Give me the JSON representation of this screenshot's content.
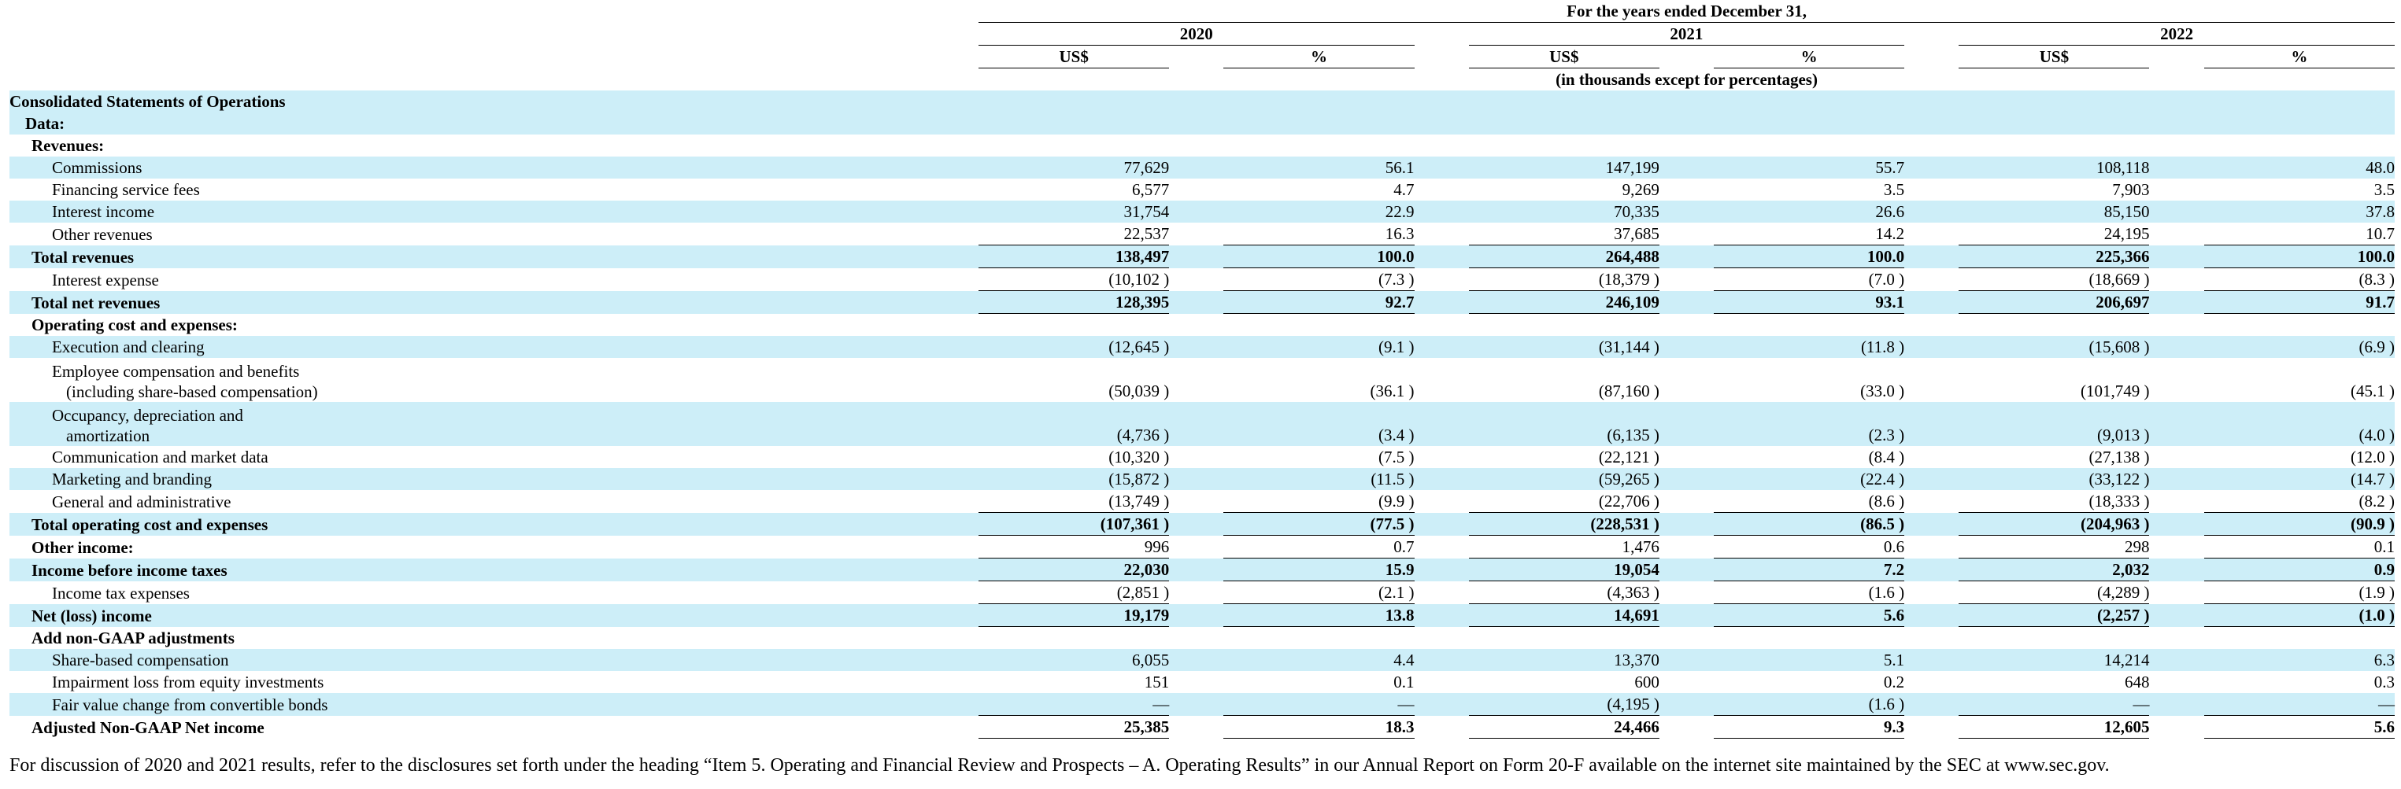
{
  "header": {
    "period": "For the years ended December 31,",
    "years": [
      "2020",
      "2021",
      "2022"
    ],
    "col_labels": [
      "US$",
      "%"
    ],
    "units_note": "(in thousands except for percentages)"
  },
  "section_title": "Consolidated Statements of Operations",
  "section_subtitle": "Data:",
  "rows": [
    {
      "label": "Revenues:",
      "indent": 1,
      "bold": true,
      "shade": false,
      "vals": [
        "",
        "",
        "",
        "",
        "",
        ""
      ]
    },
    {
      "label": "Commissions",
      "indent": 2,
      "shade": true,
      "vals": [
        "77,629",
        "56.1",
        "147,199",
        "55.7",
        "108,118",
        "48.0"
      ]
    },
    {
      "label": "Financing service fees",
      "indent": 2,
      "shade": false,
      "vals": [
        "6,577",
        "4.7",
        "9,269",
        "3.5",
        "7,903",
        "3.5"
      ]
    },
    {
      "label": "Interest income",
      "indent": 2,
      "shade": true,
      "vals": [
        "31,754",
        "22.9",
        "70,335",
        "26.6",
        "85,150",
        "37.8"
      ]
    },
    {
      "label": "Other revenues",
      "indent": 2,
      "shade": false,
      "vals": [
        "22,537",
        "16.3",
        "37,685",
        "14.2",
        "24,195",
        "10.7"
      ]
    },
    {
      "label": "Total revenues",
      "indent": 1,
      "bold": true,
      "shade": true,
      "line": "both",
      "vals": [
        "138,497",
        "100.0",
        "264,488",
        "100.0",
        "225,366",
        "100.0"
      ]
    },
    {
      "label": "Interest expense",
      "indent": 2,
      "shade": false,
      "vals": [
        "(10,102 )",
        "(7.3 )",
        "(18,379 )",
        "(7.0 )",
        "(18,669 )",
        "(8.3 )"
      ]
    },
    {
      "label": "Total net revenues",
      "indent": 1,
      "bold": true,
      "shade": true,
      "line": "both",
      "vals": [
        "128,395",
        "92.7",
        "246,109",
        "93.1",
        "206,697",
        "91.7"
      ]
    },
    {
      "label": "Operating cost and expenses:",
      "indent": 1,
      "bold": true,
      "shade": false,
      "vals": [
        "",
        "",
        "",
        "",
        "",
        ""
      ]
    },
    {
      "label": "Execution and clearing",
      "indent": 2,
      "shade": true,
      "vals": [
        "(12,645 )",
        "(9.1 )",
        "(31,144 )",
        "(11.8 )",
        "(15,608 )",
        "(6.9 )"
      ]
    },
    {
      "label": "Employee compensation and benefits",
      "label2": "(including share-based compensation)",
      "indent": 2,
      "shade": false,
      "vals": [
        "(50,039 )",
        "(36.1 )",
        "(87,160 )",
        "(33.0 )",
        "(101,749 )",
        "(45.1 )"
      ]
    },
    {
      "label": "Occupancy, depreciation and",
      "label2": "amortization",
      "indent": 2,
      "shade": true,
      "vals": [
        "(4,736 )",
        "(3.4 )",
        "(6,135 )",
        "(2.3 )",
        "(9,013 )",
        "(4.0 )"
      ]
    },
    {
      "label": "Communication and market data",
      "indent": 2,
      "shade": false,
      "vals": [
        "(10,320 )",
        "(7.5 )",
        "(22,121 )",
        "(8.4 )",
        "(27,138 )",
        "(12.0 )"
      ]
    },
    {
      "label": "Marketing and branding",
      "indent": 2,
      "shade": true,
      "vals": [
        "(15,872 )",
        "(11.5 )",
        "(59,265 )",
        "(22.4 )",
        "(33,122 )",
        "(14.7 )"
      ]
    },
    {
      "label": "General and administrative",
      "indent": 2,
      "shade": false,
      "vals": [
        "(13,749 )",
        "(9.9 )",
        "(22,706 )",
        "(8.6 )",
        "(18,333 )",
        "(8.2 )"
      ]
    },
    {
      "label": "Total operating cost and expenses",
      "indent": 1,
      "bold": true,
      "shade": true,
      "line": "both",
      "vals": [
        "(107,361 )",
        "(77.5 )",
        "(228,531 )",
        "(86.5 )",
        "(204,963 )",
        "(90.9 )"
      ]
    },
    {
      "label": "Other income:",
      "indent": 1,
      "bold": true,
      "shade": false,
      "nobold_vals": true,
      "vals": [
        "996",
        "0.7",
        "1,476",
        "0.6",
        "298",
        "0.1"
      ]
    },
    {
      "label": "Income before income taxes",
      "indent": 1,
      "bold": true,
      "shade": true,
      "line": "both",
      "vals": [
        "22,030",
        "15.9",
        "19,054",
        "7.2",
        "2,032",
        "0.9"
      ]
    },
    {
      "label": "Income tax expenses",
      "indent": 2,
      "shade": false,
      "vals": [
        "(2,851 )",
        "(2.1 )",
        "(4,363 )",
        "(1.6 )",
        "(4,289 )",
        "(1.9 )"
      ]
    },
    {
      "label": "Net (loss) income",
      "indent": 1,
      "bold": true,
      "shade": true,
      "line": "both",
      "vals": [
        "19,179",
        "13.8",
        "14,691",
        "5.6",
        "(2,257 )",
        "(1.0 )"
      ]
    },
    {
      "label": "Add non-GAAP adjustments",
      "indent": 1,
      "bold": true,
      "shade": false,
      "vals": [
        "",
        "",
        "",
        "",
        "",
        ""
      ]
    },
    {
      "label": "Share-based compensation",
      "indent": 2,
      "shade": true,
      "vals": [
        "6,055",
        "4.4",
        "13,370",
        "5.1",
        "14,214",
        "6.3"
      ]
    },
    {
      "label": "Impairment loss from equity investments",
      "indent": 2,
      "shade": false,
      "vals": [
        "151",
        "0.1",
        "600",
        "0.2",
        "648",
        "0.3"
      ]
    },
    {
      "label": "Fair value change from convertible bonds",
      "indent": 2,
      "shade": true,
      "vals": [
        "—",
        "—",
        "(4,195 )",
        "(1.6 )",
        "—",
        "—"
      ]
    },
    {
      "label": "Adjusted Non-GAAP Net income",
      "indent": 1,
      "bold": true,
      "shade": false,
      "line": "both",
      "vals": [
        "25,385",
        "18.3",
        "24,466",
        "9.3",
        "12,605",
        "5.6"
      ]
    }
  ],
  "footnote": "For discussion of 2020 and 2021 results, refer to the disclosures set forth under the heading “Item 5. Operating and Financial Review and Prospects – A. Operating Results” in our Annual Report on Form 20-F available on the internet site maintained by the SEC at www.sec.gov."
}
